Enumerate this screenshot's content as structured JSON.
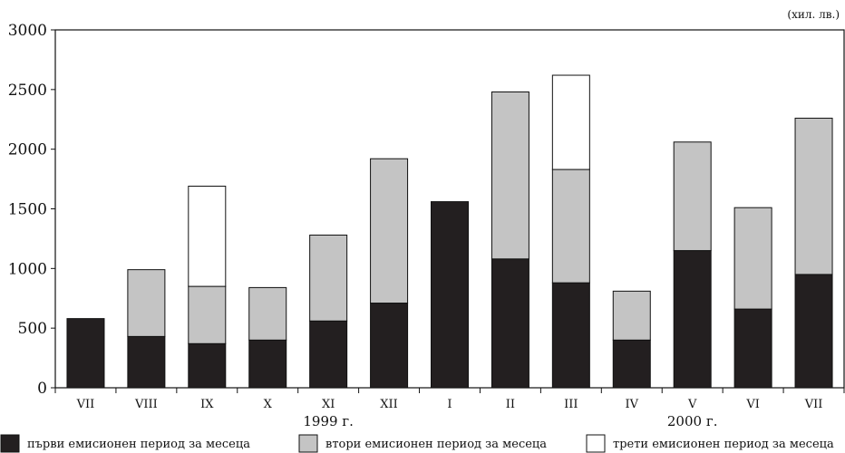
{
  "chart_data": {
    "type": "bar",
    "stacked": true,
    "unit_label": "(хил. лв.)",
    "categories": [
      "VII",
      "VIII",
      "IX",
      "X",
      "XI",
      "XII",
      "I",
      "II",
      "III",
      "IV",
      "V",
      "VI",
      "VII"
    ],
    "year_labels": [
      {
        "text": "1999 г.",
        "category_index": 4
      },
      {
        "text": "2000 г.",
        "category_index": 10
      }
    ],
    "series": [
      {
        "name": "първи емисионен период за месеца",
        "color": "#231f20",
        "values": [
          580,
          430,
          370,
          400,
          560,
          710,
          1560,
          1080,
          880,
          400,
          1150,
          660,
          950
        ]
      },
      {
        "name": "втори емисионен период за месеца",
        "color": "#c4c4c4",
        "values": [
          0,
          560,
          480,
          440,
          720,
          1210,
          0,
          1400,
          950,
          410,
          910,
          850,
          1310
        ]
      },
      {
        "name": "трети емисионен период за месеца",
        "color": "#ffffff",
        "values": [
          0,
          0,
          840,
          0,
          0,
          0,
          0,
          0,
          790,
          0,
          0,
          0,
          0
        ]
      }
    ],
    "yticks": [
      0,
      500,
      1000,
      1500,
      2000,
      2500,
      3000
    ],
    "ylim": [
      0,
      3000
    ],
    "grid": false,
    "legend_position": "bottom"
  }
}
